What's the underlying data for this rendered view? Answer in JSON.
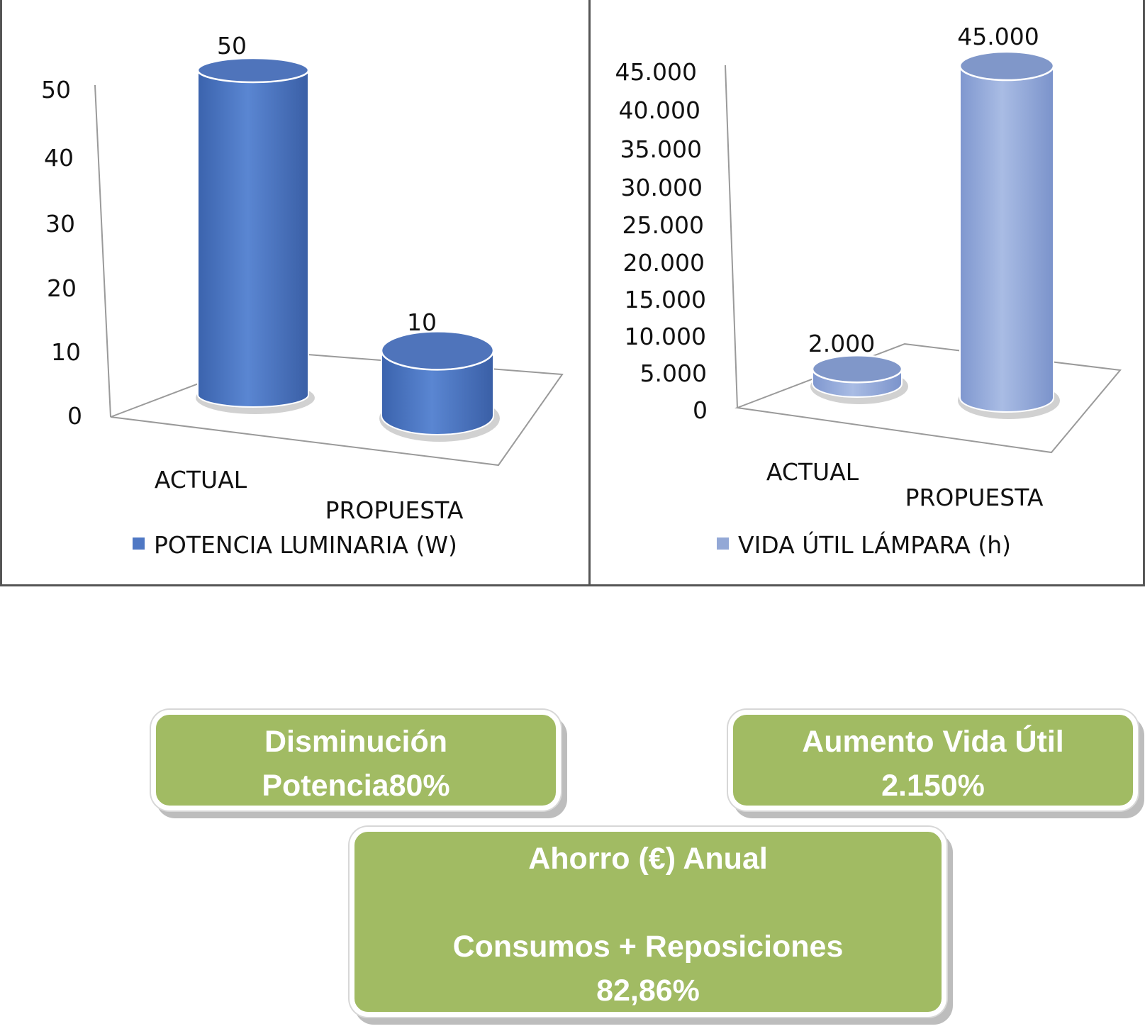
{
  "chart_data": [
    {
      "type": "bar",
      "categories": [
        "ACTUAL",
        "PROPUESTA"
      ],
      "series": [
        {
          "name": "POTENCIA LUMINARIA (W)",
          "values": [
            50,
            10
          ],
          "color": "#4f78c4"
        }
      ],
      "value_labels": [
        "50",
        "10"
      ],
      "yticks": [
        "0",
        "10",
        "20",
        "30",
        "40",
        "50"
      ],
      "ylim": [
        0,
        50
      ],
      "legend": "bottom"
    },
    {
      "type": "bar",
      "categories": [
        "ACTUAL",
        "PROPUESTA"
      ],
      "series": [
        {
          "name": "VIDA ÚTIL LÁMPARA (h)",
          "values": [
            2000,
            45000
          ],
          "color": "#93a8d6"
        }
      ],
      "value_labels": [
        "2.000",
        "45.000"
      ],
      "yticks": [
        "0",
        "5.000",
        "10.000",
        "15.000",
        "20.000",
        "25.000",
        "30.000",
        "35.000",
        "40.000",
        "45.000"
      ],
      "ylim": [
        0,
        45000
      ],
      "legend": "bottom"
    }
  ],
  "boxes": {
    "potencia": [
      "Disminución",
      "Potencia80%"
    ],
    "vida": [
      "Aumento Vida Útil",
      "2.150%"
    ],
    "ahorro": [
      "Ahorro (€) Anual",
      "",
      "Consumos + Reposiciones",
      "82,86%"
    ]
  }
}
